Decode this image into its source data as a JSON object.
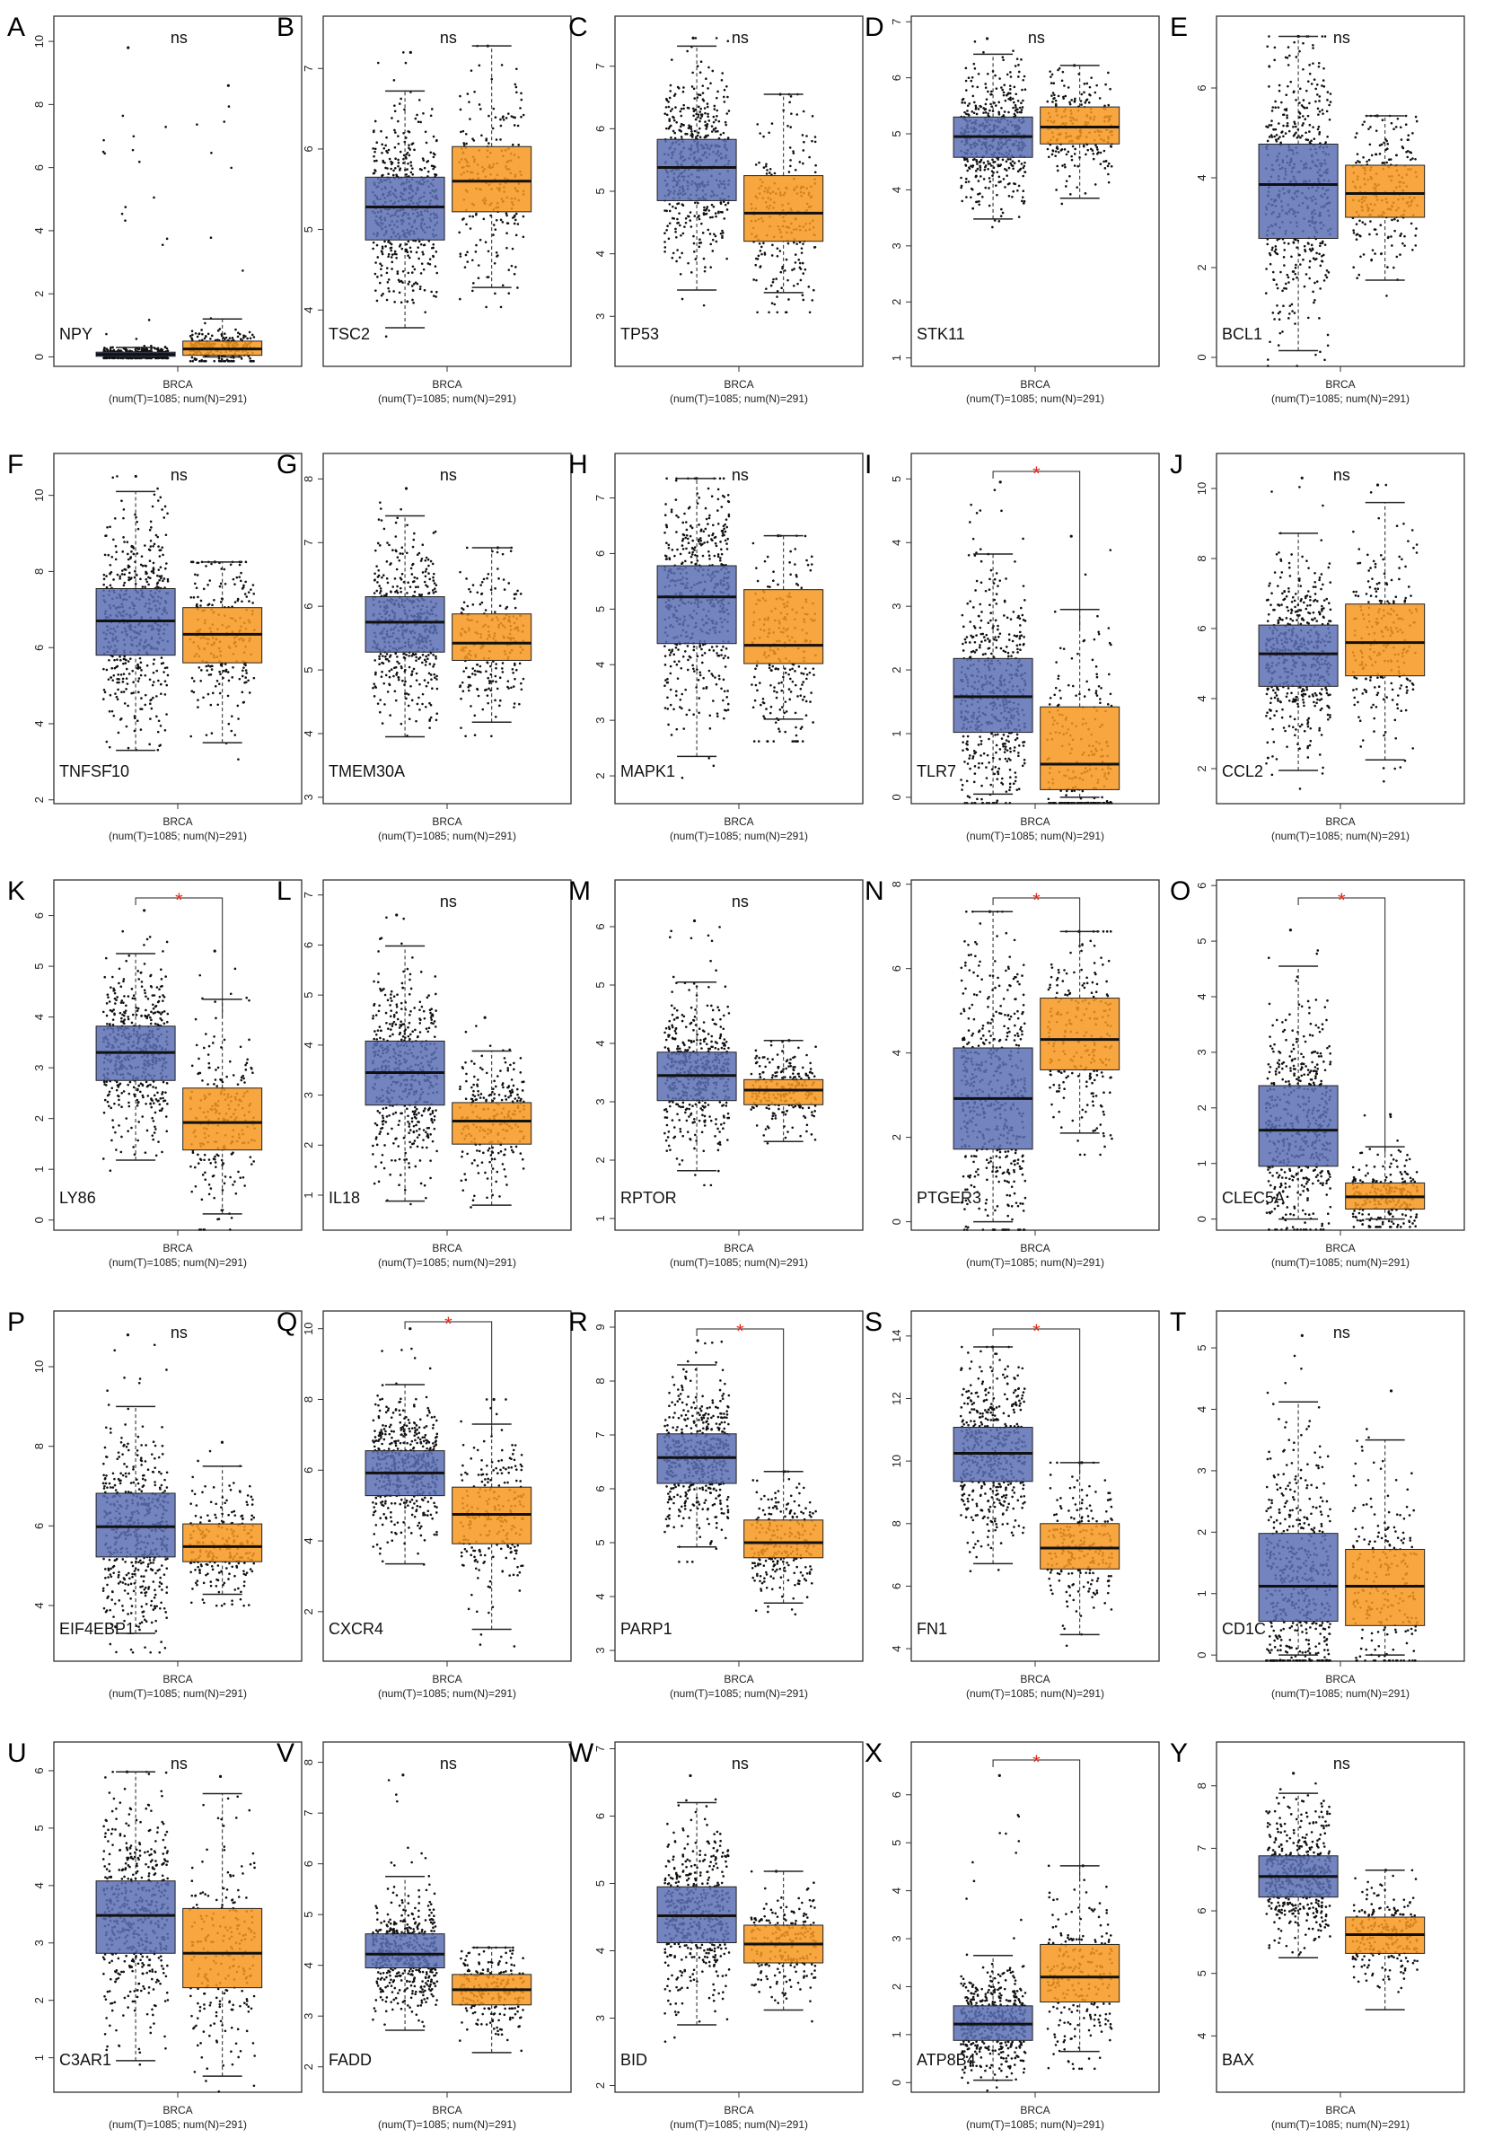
{
  "figure": {
    "cancer_label": "BRCA",
    "sample_text": "(num(T)=1085; num(N)=291)"
  },
  "colors": {
    "tumor": "#5b6fb4",
    "normal": "#f7961e",
    "significance": "#e8291c",
    "axis": "#333333",
    "dots": "#111111"
  },
  "chart_data": [
    {
      "type": "box",
      "panel": "A",
      "gene": "NPY",
      "yticks": [
        0,
        2,
        4,
        6,
        8,
        10
      ],
      "ylim": [
        -0.3,
        10.8
      ],
      "sig": "ns",
      "tumor": {
        "q1": 0.02,
        "median": 0.08,
        "q3": 0.15,
        "whisker_low": 0,
        "whisker_high": 0.3,
        "max": 9.8
      },
      "normal": {
        "q1": 0.05,
        "median": 0.25,
        "q3": 0.5,
        "whisker_low": 0,
        "whisker_high": 1.2,
        "max": 8.6
      }
    },
    {
      "type": "box",
      "panel": "B",
      "gene": "TSC2",
      "yticks": [
        4,
        5,
        6,
        7
      ],
      "ylim": [
        3.3,
        7.65
      ],
      "sig": "ns",
      "tumor": {
        "q1": 4.87,
        "median": 5.28,
        "q3": 5.65,
        "whisker_low": 3.78,
        "whisker_high": 6.72,
        "max": 7.2
      },
      "normal": {
        "q1": 5.22,
        "median": 5.6,
        "q3": 6.03,
        "whisker_low": 4.28,
        "whisker_high": 7.28,
        "max": 7.28
      }
    },
    {
      "type": "box",
      "panel": "C",
      "gene": "TP53",
      "yticks": [
        3,
        4,
        5,
        6,
        7
      ],
      "ylim": [
        2.2,
        7.8
      ],
      "sig": "ns",
      "tumor": {
        "q1": 4.85,
        "median": 5.38,
        "q3": 5.83,
        "whisker_low": 3.42,
        "whisker_high": 7.32,
        "max": 7.45
      },
      "normal": {
        "q1": 4.2,
        "median": 4.65,
        "q3": 5.25,
        "whisker_low": 3.38,
        "whisker_high": 6.55,
        "max": 6.55
      }
    },
    {
      "type": "box",
      "panel": "D",
      "gene": "STK11",
      "yticks": [
        1,
        2,
        3,
        4,
        5,
        6,
        7
      ],
      "ylim": [
        0.85,
        7.1
      ],
      "sig": "ns",
      "tumor": {
        "q1": 4.58,
        "median": 4.95,
        "q3": 5.3,
        "whisker_low": 3.48,
        "whisker_high": 6.42,
        "max": 6.7
      },
      "normal": {
        "q1": 4.82,
        "median": 5.12,
        "q3": 5.48,
        "whisker_low": 3.85,
        "whisker_high": 6.22,
        "max": 6.22
      }
    },
    {
      "type": "box",
      "panel": "E",
      "gene": "BCL1",
      "yticks": [
        0,
        2,
        4,
        6
      ],
      "ylim": [
        -0.2,
        7.6
      ],
      "sig": "ns",
      "tumor": {
        "q1": 2.65,
        "median": 3.85,
        "q3": 4.75,
        "whisker_low": 0.15,
        "whisker_high": 7.15,
        "max": 7.15
      },
      "normal": {
        "q1": 3.12,
        "median": 3.65,
        "q3": 4.28,
        "whisker_low": 1.72,
        "whisker_high": 5.38,
        "max": 5.38
      }
    },
    {
      "type": "box",
      "panel": "F",
      "gene": "TNFSF10",
      "yticks": [
        2,
        4,
        6,
        8,
        10
      ],
      "ylim": [
        1.9,
        11.1
      ],
      "sig": "ns",
      "tumor": {
        "q1": 5.8,
        "median": 6.7,
        "q3": 7.55,
        "whisker_low": 3.3,
        "whisker_high": 10.1,
        "max": 10.5
      },
      "normal": {
        "q1": 5.6,
        "median": 6.35,
        "q3": 7.05,
        "whisker_low": 3.5,
        "whisker_high": 8.25,
        "max": 8.25
      }
    },
    {
      "type": "box",
      "panel": "G",
      "gene": "TMEM30A",
      "yticks": [
        3,
        4,
        5,
        6,
        7,
        8
      ],
      "ylim": [
        2.9,
        8.4
      ],
      "sig": "ns",
      "tumor": {
        "q1": 5.28,
        "median": 5.75,
        "q3": 6.15,
        "whisker_low": 3.95,
        "whisker_high": 7.42,
        "max": 7.85
      },
      "normal": {
        "q1": 5.15,
        "median": 5.42,
        "q3": 5.88,
        "whisker_low": 4.18,
        "whisker_high": 6.92,
        "max": 6.92
      }
    },
    {
      "type": "box",
      "panel": "H",
      "gene": "MAPK1",
      "yticks": [
        2,
        3,
        4,
        5,
        6,
        7
      ],
      "ylim": [
        1.5,
        7.8
      ],
      "sig": "ns",
      "tumor": {
        "q1": 4.38,
        "median": 5.22,
        "q3": 5.78,
        "whisker_low": 2.35,
        "whisker_high": 7.35,
        "max": 7.35
      },
      "normal": {
        "q1": 4.02,
        "median": 4.35,
        "q3": 5.35,
        "whisker_low": 3.02,
        "whisker_high": 6.32,
        "max": 6.32
      }
    },
    {
      "type": "box",
      "panel": "I",
      "gene": "TLR7",
      "yticks": [
        0,
        1,
        2,
        3,
        4,
        5
      ],
      "ylim": [
        -0.1,
        5.4
      ],
      "sig": "*",
      "tumor": {
        "q1": 1.02,
        "median": 1.58,
        "q3": 2.18,
        "whisker_low": 0.05,
        "whisker_high": 3.82,
        "max": 4.95
      },
      "normal": {
        "q1": 0.12,
        "median": 0.52,
        "q3": 1.42,
        "whisker_low": 0,
        "whisker_high": 2.95,
        "max": 4.1
      }
    },
    {
      "type": "box",
      "panel": "J",
      "gene": "CCL2",
      "yticks": [
        2,
        4,
        6,
        8,
        10
      ],
      "ylim": [
        1.0,
        11.0
      ],
      "sig": "ns",
      "tumor": {
        "q1": 4.35,
        "median": 5.28,
        "q3": 6.1,
        "whisker_low": 1.95,
        "whisker_high": 8.72,
        "max": 10.3
      },
      "normal": {
        "q1": 4.65,
        "median": 5.6,
        "q3": 6.7,
        "whisker_low": 2.25,
        "whisker_high": 9.6,
        "max": 10.1
      }
    },
    {
      "type": "box",
      "panel": "K",
      "gene": "LY86",
      "yticks": [
        0,
        1,
        2,
        3,
        4,
        5,
        6
      ],
      "ylim": [
        -0.2,
        6.7
      ],
      "sig": "*",
      "tumor": {
        "q1": 2.75,
        "median": 3.3,
        "q3": 3.82,
        "whisker_low": 1.18,
        "whisker_high": 5.25,
        "max": 6.1
      },
      "normal": {
        "q1": 1.38,
        "median": 1.92,
        "q3": 2.6,
        "whisker_low": 0.12,
        "whisker_high": 4.35,
        "max": 5.3
      }
    },
    {
      "type": "box",
      "panel": "L",
      "gene": "IL18",
      "yticks": [
        1,
        2,
        3,
        4,
        5,
        6,
        7
      ],
      "ylim": [
        0.3,
        7.3
      ],
      "sig": "ns",
      "tumor": {
        "q1": 2.8,
        "median": 3.45,
        "q3": 4.08,
        "whisker_low": 0.88,
        "whisker_high": 5.98,
        "max": 6.6
      },
      "normal": {
        "q1": 2.02,
        "median": 2.48,
        "q3": 2.85,
        "whisker_low": 0.8,
        "whisker_high": 3.88,
        "max": 4.55
      }
    },
    {
      "type": "box",
      "panel": "M",
      "gene": "RPTOR",
      "yticks": [
        1,
        2,
        3,
        4,
        5,
        6
      ],
      "ylim": [
        0.8,
        6.8
      ],
      "sig": "ns",
      "tumor": {
        "q1": 3.02,
        "median": 3.45,
        "q3": 3.85,
        "whisker_low": 1.82,
        "whisker_high": 5.05,
        "max": 6.1
      },
      "normal": {
        "q1": 2.95,
        "median": 3.2,
        "q3": 3.38,
        "whisker_low": 2.32,
        "whisker_high": 4.05,
        "max": 4.05
      }
    },
    {
      "type": "box",
      "panel": "N",
      "gene": "PTGER3",
      "yticks": [
        0,
        2,
        4,
        6,
        8
      ],
      "ylim": [
        -0.2,
        8.1
      ],
      "sig": "*",
      "tumor": {
        "q1": 1.72,
        "median": 2.92,
        "q3": 4.12,
        "whisker_low": 0,
        "whisker_high": 7.35,
        "max": 7.35
      },
      "normal": {
        "q1": 3.6,
        "median": 4.32,
        "q3": 5.3,
        "whisker_low": 2.1,
        "whisker_high": 6.88,
        "max": 6.88
      }
    },
    {
      "type": "box",
      "panel": "O",
      "gene": "CLEC5A",
      "yticks": [
        0,
        1,
        2,
        3,
        4,
        5,
        6
      ],
      "ylim": [
        -0.2,
        6.1
      ],
      "sig": "*",
      "tumor": {
        "q1": 0.95,
        "median": 1.6,
        "q3": 2.4,
        "whisker_low": 0,
        "whisker_high": 4.55,
        "max": 5.2
      },
      "normal": {
        "q1": 0.18,
        "median": 0.4,
        "q3": 0.65,
        "whisker_low": 0,
        "whisker_high": 1.3,
        "max": 1.88
      }
    },
    {
      "type": "box",
      "panel": "P",
      "gene": "EIF4EBP1",
      "yticks": [
        4,
        6,
        8,
        10
      ],
      "ylim": [
        2.6,
        11.4
      ],
      "sig": "ns",
      "tumor": {
        "q1": 5.22,
        "median": 5.98,
        "q3": 6.82,
        "whisker_low": 3.3,
        "whisker_high": 9.0,
        "max": 10.8
      },
      "normal": {
        "q1": 5.1,
        "median": 5.48,
        "q3": 6.05,
        "whisker_low": 4.28,
        "whisker_high": 7.5,
        "max": 8.1
      }
    },
    {
      "type": "box",
      "panel": "Q",
      "gene": "CXCR4",
      "yticks": [
        2,
        4,
        6,
        8,
        10
      ],
      "ylim": [
        0.6,
        10.5
      ],
      "sig": "*",
      "tumor": {
        "q1": 5.28,
        "median": 5.92,
        "q3": 6.55,
        "whisker_low": 3.35,
        "whisker_high": 8.42,
        "max": 10.0
      },
      "normal": {
        "q1": 3.92,
        "median": 4.75,
        "q3": 5.52,
        "whisker_low": 1.5,
        "whisker_high": 7.3,
        "max": 8.0
      }
    },
    {
      "type": "box",
      "panel": "R",
      "gene": "PARP1",
      "yticks": [
        3,
        4,
        5,
        6,
        7,
        8,
        9
      ],
      "ylim": [
        2.8,
        9.3
      ],
      "sig": "*",
      "tumor": {
        "q1": 6.1,
        "median": 6.58,
        "q3": 7.02,
        "whisker_low": 4.92,
        "whisker_high": 8.3,
        "max": 8.75
      },
      "normal": {
        "q1": 4.72,
        "median": 5.0,
        "q3": 5.42,
        "whisker_low": 3.88,
        "whisker_high": 6.32,
        "max": 6.32
      }
    },
    {
      "type": "box",
      "panel": "S",
      "gene": "FN1",
      "yticks": [
        4,
        6,
        8,
        10,
        12,
        14
      ],
      "ylim": [
        3.6,
        14.8
      ],
      "sig": "*",
      "tumor": {
        "q1": 9.35,
        "median": 10.25,
        "q3": 11.08,
        "whisker_low": 6.72,
        "whisker_high": 13.65,
        "max": 13.65
      },
      "normal": {
        "q1": 6.55,
        "median": 7.22,
        "q3": 8.0,
        "whisker_low": 4.45,
        "whisker_high": 9.95,
        "max": 9.95
      }
    },
    {
      "type": "box",
      "panel": "T",
      "gene": "CD1C",
      "yticks": [
        0,
        1,
        2,
        3,
        4,
        5
      ],
      "ylim": [
        -0.1,
        5.6
      ],
      "sig": "ns",
      "tumor": {
        "q1": 0.55,
        "median": 1.12,
        "q3": 1.98,
        "whisker_low": 0,
        "whisker_high": 4.12,
        "max": 5.2
      },
      "normal": {
        "q1": 0.48,
        "median": 1.12,
        "q3": 1.72,
        "whisker_low": 0,
        "whisker_high": 3.5,
        "max": 4.3
      }
    },
    {
      "type": "box",
      "panel": "U",
      "gene": "C3AR1",
      "yticks": [
        1,
        2,
        3,
        4,
        5,
        6
      ],
      "ylim": [
        0.4,
        6.5
      ],
      "sig": "ns",
      "tumor": {
        "q1": 2.82,
        "median": 3.48,
        "q3": 4.08,
        "whisker_low": 0.95,
        "whisker_high": 5.98,
        "max": 5.98
      },
      "normal": {
        "q1": 2.22,
        "median": 2.82,
        "q3": 3.6,
        "whisker_low": 0.68,
        "whisker_high": 5.6,
        "max": 5.9
      }
    },
    {
      "type": "box",
      "panel": "V",
      "gene": "FADD",
      "yticks": [
        2,
        3,
        4,
        5,
        6,
        7,
        8
      ],
      "ylim": [
        1.5,
        8.4
      ],
      "sig": "ns",
      "tumor": {
        "q1": 3.95,
        "median": 4.22,
        "q3": 4.62,
        "whisker_low": 2.72,
        "whisker_high": 5.75,
        "max": 7.75
      },
      "normal": {
        "q1": 3.22,
        "median": 3.52,
        "q3": 3.82,
        "whisker_low": 2.28,
        "whisker_high": 4.35,
        "max": 4.35
      }
    },
    {
      "type": "box",
      "panel": "W",
      "gene": "BID",
      "yticks": [
        2,
        3,
        4,
        5,
        6,
        7
      ],
      "ylim": [
        1.9,
        7.1
      ],
      "sig": "ns",
      "tumor": {
        "q1": 4.12,
        "median": 4.52,
        "q3": 4.95,
        "whisker_low": 2.9,
        "whisker_high": 6.2,
        "max": 6.6
      },
      "normal": {
        "q1": 3.82,
        "median": 4.1,
        "q3": 4.38,
        "whisker_low": 3.12,
        "whisker_high": 5.18,
        "max": 5.18
      }
    },
    {
      "type": "box",
      "panel": "X",
      "gene": "ATP8B4",
      "yticks": [
        0,
        1,
        2,
        3,
        4,
        5,
        6
      ],
      "ylim": [
        -0.2,
        7.1
      ],
      "sig": "*",
      "tumor": {
        "q1": 0.88,
        "median": 1.22,
        "q3": 1.6,
        "whisker_low": 0.05,
        "whisker_high": 2.65,
        "max": 6.4
      },
      "normal": {
        "q1": 1.68,
        "median": 2.2,
        "q3": 2.88,
        "whisker_low": 0.65,
        "whisker_high": 4.52,
        "max": 4.52
      }
    },
    {
      "type": "box",
      "panel": "Y",
      "gene": "BAX",
      "yticks": [
        4,
        5,
        6,
        7,
        8
      ],
      "ylim": [
        3.1,
        8.7
      ],
      "sig": "ns",
      "tumor": {
        "q1": 6.22,
        "median": 6.55,
        "q3": 6.88,
        "whisker_low": 5.25,
        "whisker_high": 7.88,
        "max": 8.2
      },
      "normal": {
        "q1": 5.32,
        "median": 5.62,
        "q3": 5.9,
        "whisker_low": 4.42,
        "whisker_high": 6.65,
        "max": 6.65
      }
    }
  ]
}
